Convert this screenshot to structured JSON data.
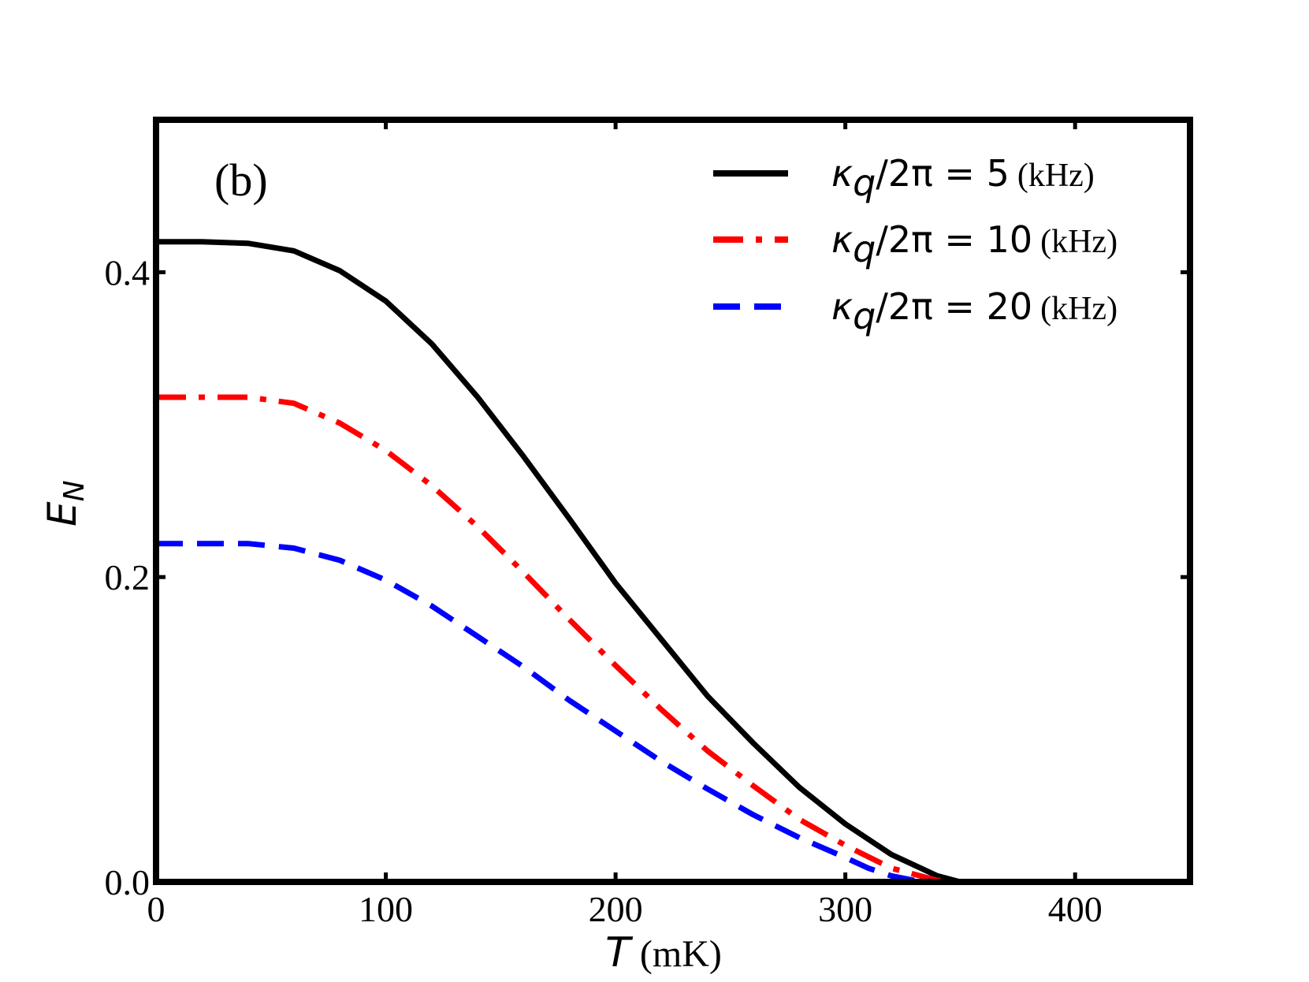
{
  "chart_data": {
    "type": "line",
    "panel_label": "(b)",
    "xlabel": {
      "symbol": "T",
      "unit": "(mK)"
    },
    "ylabel": {
      "symbol": "E",
      "subscript": "N"
    },
    "xlim": [
      0,
      450
    ],
    "ylim": [
      0,
      0.5
    ],
    "xticks": [
      0,
      100,
      200,
      300,
      400
    ],
    "xtick_labels": [
      "0",
      "100",
      "200",
      "300",
      "400"
    ],
    "yticks": [
      0.0,
      0.2,
      0.4
    ],
    "ytick_labels": [
      "0.0",
      "0.2",
      "0.4"
    ],
    "grid": false,
    "legend_position": "top-right",
    "series": [
      {
        "name": "κq/2π = 5 (kHz)",
        "legend_math": "κ_q/2π = 5",
        "legend_unit": "(kHz)",
        "color": "#000000",
        "style": "solid",
        "x": [
          0,
          20,
          40,
          60,
          80,
          100,
          120,
          140,
          160,
          180,
          200,
          220,
          240,
          260,
          280,
          300,
          320,
          340,
          350,
          360,
          380,
          400,
          420,
          450
        ],
        "y": [
          0.42,
          0.42,
          0.419,
          0.414,
          0.401,
          0.381,
          0.353,
          0.318,
          0.279,
          0.238,
          0.196,
          0.159,
          0.122,
          0.091,
          0.062,
          0.038,
          0.018,
          0.004,
          0.0,
          0.0,
          0.0,
          0.0,
          0.0,
          0.0
        ]
      },
      {
        "name": "κq/2π = 10 (kHz)",
        "legend_math": "κ_q/2π = 10",
        "legend_unit": "(kHz)",
        "color": "#ff0000",
        "style": "dashdot",
        "x": [
          0,
          20,
          40,
          60,
          80,
          100,
          120,
          140,
          160,
          180,
          200,
          220,
          240,
          260,
          280,
          300,
          320,
          340,
          350,
          360,
          380,
          400,
          420,
          450
        ],
        "y": [
          0.318,
          0.318,
          0.318,
          0.314,
          0.301,
          0.283,
          0.26,
          0.233,
          0.203,
          0.172,
          0.142,
          0.113,
          0.086,
          0.063,
          0.041,
          0.024,
          0.009,
          0.001,
          0.0,
          0.0,
          0.0,
          0.0,
          0.0,
          0.0
        ]
      },
      {
        "name": "κq/2π = 20 (kHz)",
        "legend_math": "κ_q/2π = 20",
        "legend_unit": "(kHz)",
        "color": "#0000ff",
        "style": "dashed",
        "x": [
          0,
          20,
          40,
          60,
          80,
          100,
          120,
          140,
          160,
          180,
          200,
          220,
          240,
          260,
          280,
          300,
          310,
          320,
          330,
          340,
          360,
          380,
          400,
          420,
          450
        ],
        "y": [
          0.222,
          0.222,
          0.222,
          0.219,
          0.211,
          0.198,
          0.181,
          0.161,
          0.141,
          0.119,
          0.099,
          0.079,
          0.061,
          0.044,
          0.029,
          0.016,
          0.009,
          0.004,
          0.001,
          0.0,
          0.0,
          0.0,
          0.0,
          0.0,
          0.0
        ]
      }
    ]
  }
}
